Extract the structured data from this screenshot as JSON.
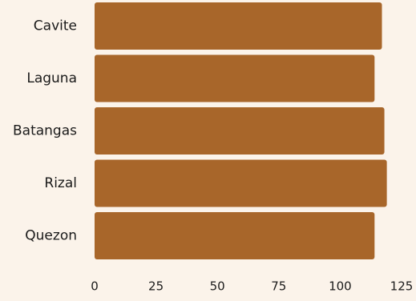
{
  "chart_data": {
    "type": "bar",
    "orientation": "horizontal",
    "categories": [
      "Cavite",
      "Laguna",
      "Batangas",
      "Rizal",
      "Quezon"
    ],
    "values": [
      117,
      114,
      118,
      119,
      114
    ],
    "xticks": [
      0,
      25,
      50,
      75,
      100,
      125
    ],
    "xlim": [
      0,
      125
    ],
    "title": "",
    "xlabel": "",
    "ylabel": "",
    "grid": false,
    "legend": "none",
    "colors": {
      "bar": "#a8662a",
      "background": "#fbf3ea",
      "text": "#1a1a1a"
    }
  }
}
